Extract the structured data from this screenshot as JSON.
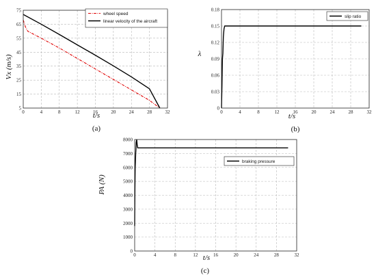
{
  "chart_data": [
    {
      "type": "line",
      "id": "a",
      "panel_label": "(a)",
      "xlabel": "t/s",
      "ylabel": "Vx (m/s)",
      "xlim": [
        0,
        32
      ],
      "ylim": [
        5,
        75
      ],
      "xticks": [
        "0",
        "4",
        "8",
        "12",
        "16",
        "20",
        "24",
        "28",
        "32"
      ],
      "yticks": [
        "5",
        "15",
        "25",
        "35",
        "45",
        "55",
        "65",
        "75"
      ],
      "grid": true,
      "legend_position": "top-right",
      "series": [
        {
          "name": "wheel speed",
          "color": "#e00000",
          "style": "dash-dot",
          "points": [
            [
              0,
              68
            ],
            [
              0.2,
              66
            ],
            [
              0.5,
              63
            ],
            [
              1,
              60
            ],
            [
              4,
              55
            ],
            [
              8,
              48
            ],
            [
              12,
              40.5
            ],
            [
              16,
              33
            ],
            [
              20,
              25.5
            ],
            [
              24,
              18
            ],
            [
              28,
              10.5
            ],
            [
              30.3,
              5
            ]
          ]
        },
        {
          "name": "linear velocity of the aircraft",
          "color": "#000000",
          "style": "solid",
          "points": [
            [
              0,
              72
            ],
            [
              4,
              65
            ],
            [
              8,
              57.7
            ],
            [
              12,
              50.2
            ],
            [
              16,
              42.8
            ],
            [
              20,
              35.2
            ],
            [
              24,
              27.3
            ],
            [
              28,
              18.8
            ],
            [
              30.3,
              5
            ]
          ]
        }
      ]
    },
    {
      "type": "line",
      "id": "b",
      "panel_label": "(b)",
      "xlabel": "t/s",
      "ylabel": "λ",
      "xlim": [
        0,
        32
      ],
      "ylim": [
        0,
        0.18
      ],
      "xticks": [
        "0",
        "4",
        "8",
        "12",
        "16",
        "20",
        "24",
        "28",
        "32"
      ],
      "yticks": [
        "0",
        "0.03",
        "0.06",
        "0.09",
        "0.12",
        "0.15",
        "0.18"
      ],
      "grid": true,
      "legend_position": "top-right",
      "series": [
        {
          "name": "slip ratio",
          "color": "#000000",
          "style": "solid",
          "points": [
            [
              0,
              0
            ],
            [
              0.1,
              0.04
            ],
            [
              0.2,
              0.09
            ],
            [
              0.3,
              0.1
            ],
            [
              0.4,
              0.13
            ],
            [
              0.55,
              0.145
            ],
            [
              0.7,
              0.15
            ],
            [
              30.3,
              0.15
            ]
          ]
        }
      ]
    },
    {
      "type": "line",
      "id": "c",
      "panel_label": "(c)",
      "xlabel": "t/s",
      "ylabel": "PA (N)",
      "xlim": [
        0,
        32
      ],
      "ylim": [
        0,
        8000
      ],
      "xticks": [
        "0",
        "4",
        "8",
        "12",
        "16",
        "20",
        "24",
        "28",
        "32"
      ],
      "yticks": [
        "0",
        "1000",
        "2000",
        "3000",
        "4000",
        "5000",
        "6000",
        "7000",
        "8000"
      ],
      "grid": true,
      "legend_position": "top-right",
      "series": [
        {
          "name": "braking pressure",
          "color": "#000000",
          "style": "solid",
          "points": [
            [
              0,
              1800
            ],
            [
              0.05,
              4500
            ],
            [
              0.1,
              6000
            ],
            [
              0.15,
              6400
            ],
            [
              0.2,
              7000
            ],
            [
              0.25,
              7300
            ],
            [
              0.3,
              7800
            ],
            [
              0.4,
              8000
            ],
            [
              0.5,
              7600
            ],
            [
              0.6,
              7400
            ],
            [
              30.3,
              7400
            ]
          ]
        }
      ]
    }
  ]
}
